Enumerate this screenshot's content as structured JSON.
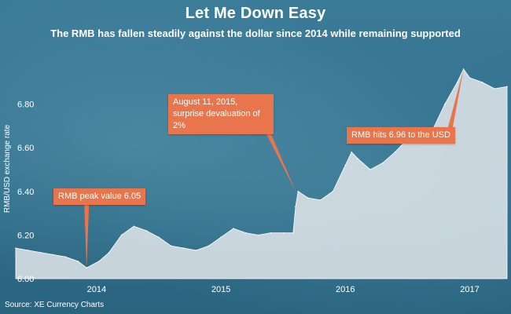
{
  "title": "Let Me Down Easy",
  "subtitle": "The RMB has fallen steadily against the dollar since 2014 while remaining supported",
  "source": "Source: XE Currency Charts",
  "colors": {
    "area_fill": "#e9ecee",
    "callout": "#e8754b",
    "text": "#ffffff",
    "background": "#2e6a86"
  },
  "chart_data": {
    "type": "area",
    "title": "Let Me Down Easy",
    "subtitle": "The RMB has fallen steadily against the dollar since 2014 while remaining supported",
    "ylabel": "RMB/USD exchange rate",
    "xlabel": "",
    "ylim": [
      6.0,
      6.96
    ],
    "xlim": [
      2013.35,
      2017.3
    ],
    "grid": false,
    "legend": "none",
    "x_ticks": [
      {
        "value": 2014,
        "label": "2014"
      },
      {
        "value": 2015,
        "label": "2015"
      },
      {
        "value": 2016,
        "label": "2016"
      },
      {
        "value": 2017,
        "label": "2017"
      }
    ],
    "y_ticks": [
      {
        "value": 6.0,
        "label": "6.00"
      },
      {
        "value": 6.2,
        "label": "6.20"
      },
      {
        "value": 6.4,
        "label": "6.40"
      },
      {
        "value": 6.6,
        "label": "6.60"
      },
      {
        "value": 6.8,
        "label": "6.80"
      }
    ],
    "x": [
      2013.35,
      2013.45,
      2013.55,
      2013.65,
      2013.75,
      2013.85,
      2013.92,
      2014.02,
      2014.1,
      2014.2,
      2014.3,
      2014.4,
      2014.5,
      2014.6,
      2014.7,
      2014.8,
      2014.9,
      2015.0,
      2015.1,
      2015.2,
      2015.3,
      2015.4,
      2015.5,
      2015.58,
      2015.6,
      2015.62,
      2015.7,
      2015.8,
      2015.9,
      2016.0,
      2016.05,
      2016.1,
      2016.2,
      2016.3,
      2016.4,
      2016.5,
      2016.6,
      2016.7,
      2016.8,
      2016.9,
      2016.95,
      2017.0,
      2017.1,
      2017.2,
      2017.3
    ],
    "values": [
      6.14,
      6.13,
      6.12,
      6.11,
      6.1,
      6.08,
      6.05,
      6.08,
      6.12,
      6.2,
      6.24,
      6.22,
      6.19,
      6.15,
      6.14,
      6.13,
      6.15,
      6.19,
      6.23,
      6.21,
      6.2,
      6.21,
      6.21,
      6.21,
      6.33,
      6.4,
      6.37,
      6.36,
      6.4,
      6.52,
      6.58,
      6.55,
      6.5,
      6.53,
      6.58,
      6.64,
      6.67,
      6.68,
      6.8,
      6.9,
      6.96,
      6.92,
      6.9,
      6.87,
      6.88
    ],
    "annotations": [
      {
        "text": "RMB peak value 6.05",
        "x": 2013.92,
        "y": 6.05
      },
      {
        "text": "August 11, 2015, surprise devaluation of 2%",
        "x": 2015.6,
        "y": 6.4
      },
      {
        "text": "RMB hits 6.96 to the USD",
        "x": 2016.95,
        "y": 6.96
      }
    ]
  }
}
